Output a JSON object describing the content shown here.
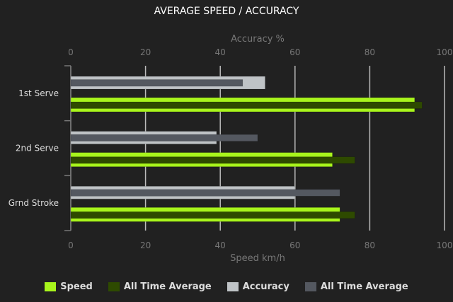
{
  "chart_data": {
    "type": "bar",
    "orientation": "horizontal",
    "title": "AVERAGE SPEED / ACCURACY",
    "categories": [
      "1st Serve",
      "2nd Serve",
      "Grnd Stroke"
    ],
    "top_axis": {
      "label": "Accuracy %",
      "range": [
        0,
        100
      ],
      "ticks": [
        "0",
        "20",
        "40",
        "60",
        "80",
        "100"
      ]
    },
    "bottom_axis": {
      "label": "Speed km/h",
      "range": [
        0,
        100
      ],
      "ticks": [
        "0",
        "20",
        "40",
        "60",
        "80",
        "100"
      ]
    },
    "grid": true,
    "legend_position": "bottom",
    "series": [
      {
        "name": "Speed",
        "axis": "bottom",
        "color": "#a8f51c",
        "values": [
          92,
          70,
          72
        ]
      },
      {
        "name": "All Time Average",
        "axis": "bottom",
        "color": "#2e4a00",
        "values": [
          94,
          76,
          76
        ]
      },
      {
        "name": "Accuracy",
        "axis": "top",
        "color": "#bfc3c6",
        "values": [
          52,
          39,
          60
        ]
      },
      {
        "name": "All Time Average",
        "axis": "top",
        "color": "#545860",
        "values": [
          46,
          50,
          72
        ]
      }
    ]
  }
}
